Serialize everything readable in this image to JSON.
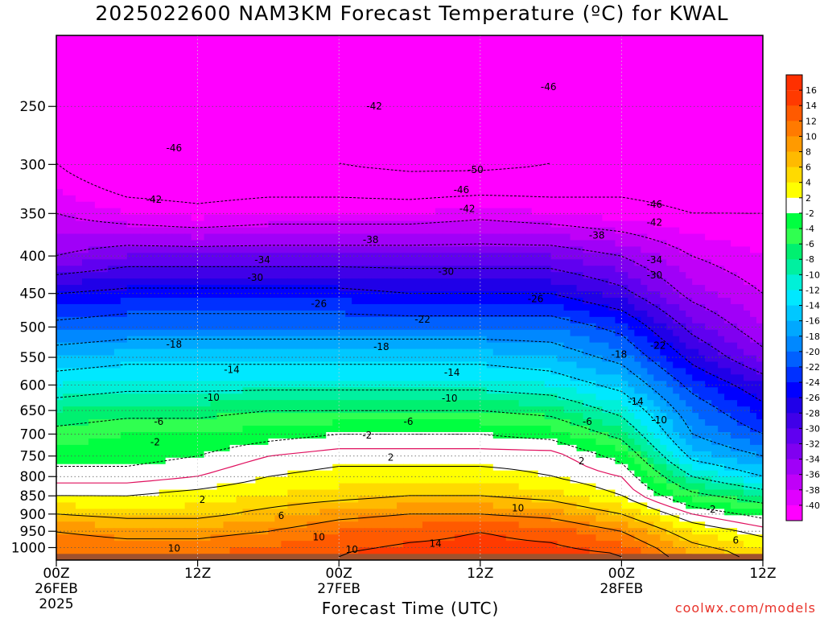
{
  "title": "2025022600 NAM3KM Forecast Temperature (ºC) for KWAL",
  "credit": "coolwx.com/models",
  "colors": {
    "background": "#ffffff",
    "ground": "#a0522d",
    "credit": "#e8322a",
    "freezing_line": "#e0115f"
  },
  "chart_data": {
    "type": "heatmap",
    "title": "2025022600 NAM3KM Forecast Temperature (ºC) for KWAL",
    "xlabel": "Forecast Time (UTC)",
    "ylabel": "",
    "y_scale": "log-pressure",
    "ylim": [
      1040,
      200
    ],
    "xlim": [
      0,
      60
    ],
    "grid": true,
    "x_ticks": [
      {
        "hour": 0,
        "label": "00Z",
        "sub": "26FEB",
        "sub2": "2025"
      },
      {
        "hour": 12,
        "label": "12Z",
        "sub": "",
        "sub2": ""
      },
      {
        "hour": 24,
        "label": "00Z",
        "sub": "27FEB",
        "sub2": ""
      },
      {
        "hour": 36,
        "label": "12Z",
        "sub": "",
        "sub2": ""
      },
      {
        "hour": 48,
        "label": "00Z",
        "sub": "28FEB",
        "sub2": ""
      },
      {
        "hour": 60,
        "label": "12Z",
        "sub": "",
        "sub2": ""
      }
    ],
    "y_ticks": [
      250,
      300,
      350,
      400,
      450,
      500,
      550,
      600,
      650,
      700,
      750,
      800,
      850,
      900,
      950,
      1000
    ],
    "ground_pressure": 1020,
    "levels": [
      1020,
      950,
      900,
      850,
      800,
      750,
      700,
      650,
      600,
      550,
      500,
      450,
      400,
      350,
      300,
      250,
      200
    ],
    "times": [
      0,
      6,
      12,
      18,
      24,
      30,
      36,
      42,
      48,
      54,
      60
    ],
    "temperature_rows": [
      [
        12,
        12,
        12,
        13,
        14,
        15,
        15,
        15,
        14,
        8,
        5
      ],
      [
        10,
        9,
        9,
        10,
        12,
        13,
        14,
        13,
        10,
        4,
        1
      ],
      [
        6,
        5,
        5,
        7,
        9,
        10,
        10,
        9,
        6,
        0,
        -3
      ],
      [
        2,
        2,
        3,
        4,
        5,
        6,
        6,
        5,
        2,
        -5,
        -8
      ],
      [
        -1,
        -1,
        0,
        2,
        3,
        3,
        3,
        2,
        0,
        -10,
        -14
      ],
      [
        -3,
        -3,
        -2,
        0,
        1,
        1,
        1,
        1,
        -3,
        -15,
        -18
      ],
      [
        -5,
        -4,
        -4,
        -3,
        -2,
        -2,
        -2,
        -3,
        -7,
        -18,
        -22
      ],
      [
        -8,
        -7,
        -7,
        -6,
        -6,
        -6,
        -6,
        -7,
        -11,
        -20,
        -25
      ],
      [
        -12,
        -11,
        -11,
        -11,
        -11,
        -11,
        -11,
        -12,
        -15,
        -23,
        -28
      ],
      [
        -16,
        -15,
        -15,
        -15,
        -15,
        -15,
        -15,
        -16,
        -19,
        -27,
        -33
      ],
      [
        -21,
        -20,
        -20,
        -20,
        -20,
        -20,
        -20,
        -20,
        -23,
        -31,
        -36
      ],
      [
        -26,
        -25,
        -25,
        -25,
        -25,
        -26,
        -26,
        -26,
        -29,
        -35,
        -38
      ],
      [
        -34,
        -32,
        -32,
        -32,
        -32,
        -32,
        -32,
        -32,
        -34,
        -38,
        -40
      ],
      [
        -38,
        -40,
        -41,
        -40,
        -40,
        -40,
        -39,
        -40,
        -41,
        -42,
        -42
      ],
      [
        -42,
        -46,
        -46,
        -46,
        -46,
        -47,
        -47,
        -46,
        -44,
        -44,
        -44
      ],
      [
        -42,
        -44,
        -44,
        -45,
        -46,
        -46,
        -47,
        -46,
        -45,
        -44,
        -44
      ],
      [
        -44,
        -44,
        -45,
        -45,
        -46,
        -46,
        -46,
        -46,
        -45,
        -44,
        -44
      ]
    ],
    "colorbar": {
      "labels": [
        "16",
        "14",
        "12",
        "10",
        "8",
        "6",
        "4",
        "2",
        "-2",
        "-4",
        "-6",
        "-8",
        "-10",
        "-12",
        "-14",
        "-16",
        "-18",
        "-20",
        "-22",
        "-24",
        "-26",
        "-28",
        "-30",
        "-32",
        "-34",
        "-36",
        "-38",
        "-40"
      ],
      "colors": [
        "#ff3a00",
        "#ff5a00",
        "#ff7a00",
        "#ff9a00",
        "#ffba00",
        "#ffda00",
        "#ffff00",
        "#ffffff",
        "#00ff40",
        "#30ff50",
        "#00f070",
        "#00f0a0",
        "#00f0d8",
        "#00e8ff",
        "#00c8ff",
        "#00a8ff",
        "#0088ff",
        "#0060ff",
        "#0030ff",
        "#0000ff",
        "#2000e8",
        "#4000e8",
        "#6000f0",
        "#8000f0",
        "#a000f8",
        "#c000f8",
        "#e000ff",
        "#ff00ff"
      ]
    },
    "contour_labels": [
      {
        "text": "-42",
        "hour": 27,
        "p": 250
      },
      {
        "text": "-46",
        "hour": 10,
        "p": 285
      },
      {
        "text": "-46",
        "hour": 41.8,
        "p": 235
      },
      {
        "text": "-50",
        "hour": 35.6,
        "p": 305
      },
      {
        "text": "-46",
        "hour": 34.4,
        "p": 325
      },
      {
        "text": "-42",
        "hour": 8.3,
        "p": 335
      },
      {
        "text": "-42",
        "hour": 34.9,
        "p": 345
      },
      {
        "text": "-46",
        "hour": 50.8,
        "p": 340
      },
      {
        "text": "-42",
        "hour": 50.8,
        "p": 360
      },
      {
        "text": "-38",
        "hour": 26.7,
        "p": 380
      },
      {
        "text": "-38",
        "hour": 45.9,
        "p": 375
      },
      {
        "text": "-34",
        "hour": 17.5,
        "p": 405
      },
      {
        "text": "-34",
        "hour": 50.8,
        "p": 405
      },
      {
        "text": "-30",
        "hour": 16.9,
        "p": 428
      },
      {
        "text": "-30",
        "hour": 33.1,
        "p": 420
      },
      {
        "text": "-30",
        "hour": 50.8,
        "p": 425
      },
      {
        "text": "-26",
        "hour": 22.3,
        "p": 465
      },
      {
        "text": "-26",
        "hour": 40.7,
        "p": 458
      },
      {
        "text": "-22",
        "hour": 31.1,
        "p": 488
      },
      {
        "text": "-22",
        "hour": 51.1,
        "p": 530
      },
      {
        "text": "-18",
        "hour": 10.0,
        "p": 528
      },
      {
        "text": "-18",
        "hour": 27.6,
        "p": 532
      },
      {
        "text": "-18",
        "hour": 47.8,
        "p": 545
      },
      {
        "text": "-14",
        "hour": 14.9,
        "p": 572
      },
      {
        "text": "-14",
        "hour": 33.6,
        "p": 577
      },
      {
        "text": "-14",
        "hour": 49.2,
        "p": 632
      },
      {
        "text": "-10",
        "hour": 13.2,
        "p": 624
      },
      {
        "text": "-10",
        "hour": 33.4,
        "p": 626
      },
      {
        "text": "-10",
        "hour": 51.2,
        "p": 670
      },
      {
        "text": "-6",
        "hour": 8.7,
        "p": 673
      },
      {
        "text": "-6",
        "hour": 29.9,
        "p": 673
      },
      {
        "text": "-6",
        "hour": 45.1,
        "p": 673
      },
      {
        "text": "-2",
        "hour": 8.4,
        "p": 718
      },
      {
        "text": "-2",
        "hour": 26.4,
        "p": 703
      },
      {
        "text": "-2",
        "hour": 55.6,
        "p": 887
      },
      {
        "text": "2",
        "hour": 28.4,
        "p": 753
      },
      {
        "text": "2",
        "hour": 44.6,
        "p": 762
      },
      {
        "text": "2",
        "hour": 12.4,
        "p": 860
      },
      {
        "text": "6",
        "hour": 19.1,
        "p": 905
      },
      {
        "text": "6",
        "hour": 57.7,
        "p": 978
      },
      {
        "text": "10",
        "hour": 39.2,
        "p": 883
      },
      {
        "text": "10",
        "hour": 22.3,
        "p": 968
      },
      {
        "text": "10",
        "hour": 10.0,
        "p": 1003
      },
      {
        "text": "10",
        "hour": 25.1,
        "p": 1006
      },
      {
        "text": "14",
        "hour": 32.2,
        "p": 987
      }
    ]
  }
}
